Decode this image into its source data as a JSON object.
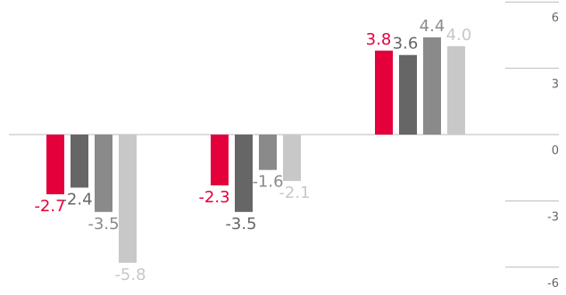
{
  "chart_data": {
    "type": "bar",
    "categories": [
      "",
      "",
      ""
    ],
    "series": [
      {
        "color": "#e4003b",
        "values": [
          -2.7,
          -2.3,
          3.8
        ]
      },
      {
        "color": "#666666",
        "values": [
          -2.4,
          -3.5,
          3.6
        ]
      },
      {
        "color": "#8a8a8a",
        "values": [
          -3.5,
          -1.6,
          4.4
        ]
      },
      {
        "color": "#c8c8c8",
        "values": [
          -5.8,
          -2.1,
          4.0
        ]
      }
    ],
    "ylim": [
      -6,
      6
    ],
    "yticks": [
      6,
      3,
      0,
      -3,
      -6
    ],
    "ytick_labels": [
      "6",
      "3",
      "0",
      "-3",
      "-6"
    ],
    "y_axis_position": "right",
    "grid": "short tick lines at right only",
    "legend": "none",
    "data_labels": [
      [
        "-2.7",
        "-2.3",
        "3.8"
      ],
      [
        "-2.4",
        "-3.5",
        "3.6"
      ],
      [
        "-3.5",
        "-1.6",
        "4.4"
      ],
      [
        "-5.8",
        "-2.1",
        "4.0"
      ]
    ]
  }
}
